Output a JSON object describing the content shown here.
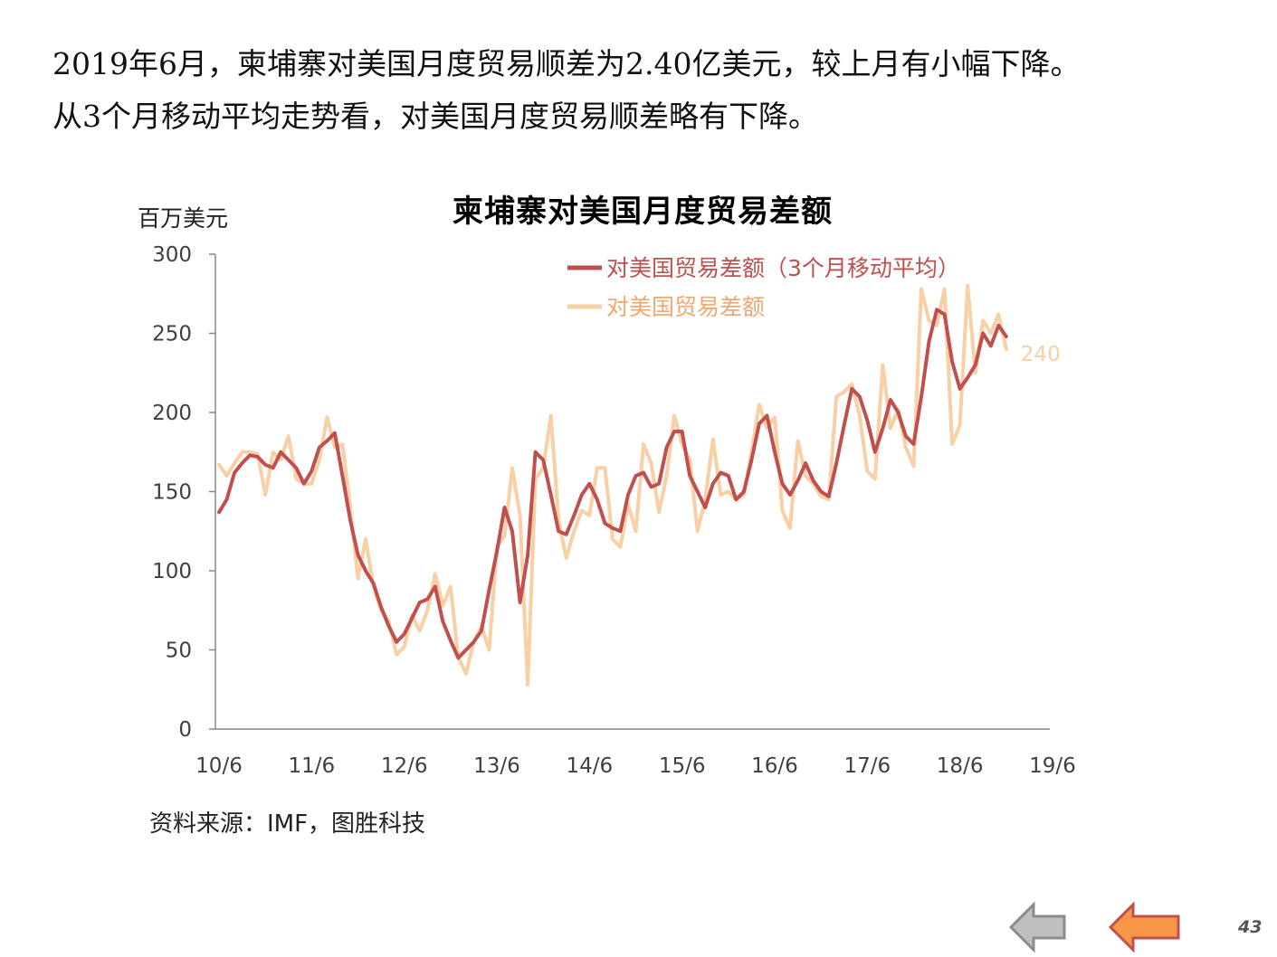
{
  "intro": {
    "line1": "2019年6月，柬埔寨对美国月度贸易顺差为2.40亿美元，较上月有小幅下降。",
    "line2": "从3个月移动平均走势看，对美国月度贸易顺差略有下降。"
  },
  "source_note": "资料来源：IMF，图胜科技",
  "page_number": "43",
  "nav": {
    "back_icon": "arrow-left-icon",
    "next_icon": "arrow-left-icon"
  },
  "colors": {
    "ma3": "#c0504d",
    "monthly": "#f9cfa5",
    "axis": "#888888",
    "tick_text": "#404040"
  },
  "chart_data": {
    "type": "line",
    "title": "柬埔寨对美国月度贸易差额",
    "ylabel": "百万美元",
    "xlabel": "",
    "ylim": [
      0,
      300
    ],
    "yticks": [
      0,
      50,
      100,
      150,
      200,
      250,
      300
    ],
    "x_tick_labels": [
      "10/6",
      "11/6",
      "12/6",
      "13/6",
      "14/6",
      "15/6",
      "16/6",
      "17/6",
      "18/6",
      "19/6"
    ],
    "x_start": "2010-06",
    "x_end": "2019-06",
    "grid": false,
    "legend_position": "top-center",
    "end_label": "240",
    "series": [
      {
        "name": "对美国贸易差额（3个月移动平均）",
        "values": [
          137,
          145,
          162,
          168,
          173,
          172,
          167,
          165,
          175,
          170,
          165,
          155,
          163,
          178,
          182,
          187,
          160,
          132,
          110,
          100,
          92,
          77,
          65,
          55,
          60,
          70,
          80,
          82,
          90,
          68,
          56,
          45,
          50,
          55,
          62,
          88,
          112,
          140,
          125,
          80,
          110,
          175,
          170,
          148,
          125,
          123,
          135,
          148,
          155,
          145,
          130,
          127,
          125,
          148,
          160,
          162,
          153,
          155,
          178,
          188,
          188,
          160,
          150,
          140,
          155,
          162,
          160,
          145,
          150,
          170,
          193,
          198,
          175,
          155,
          148,
          157,
          168,
          157,
          150,
          147,
          168,
          192,
          215,
          210,
          195,
          175,
          190,
          208,
          200,
          185,
          180,
          210,
          245,
          265,
          262,
          232,
          215,
          222,
          230,
          250,
          242,
          255,
          248
        ]
      },
      {
        "name": "对美国贸易差额",
        "values": [
          167,
          160,
          168,
          175,
          175,
          174,
          148,
          175,
          170,
          185,
          158,
          155,
          155,
          170,
          197,
          178,
          180,
          140,
          95,
          120,
          90,
          75,
          68,
          47,
          52,
          72,
          62,
          75,
          98,
          78,
          90,
          45,
          35,
          55,
          65,
          50,
          115,
          122,
          165,
          135,
          28,
          158,
          165,
          198,
          132,
          108,
          125,
          138,
          135,
          165,
          165,
          120,
          115,
          142,
          125,
          180,
          168,
          137,
          160,
          198,
          180,
          170,
          125,
          145,
          183,
          148,
          150,
          145,
          148,
          175,
          205,
          190,
          197,
          138,
          127,
          182,
          160,
          155,
          147,
          145,
          210,
          213,
          218,
          198,
          163,
          158,
          230,
          190,
          202,
          178,
          166,
          278,
          258,
          255,
          278,
          180,
          192,
          280,
          225,
          258,
          250,
          262,
          240
        ]
      }
    ]
  }
}
